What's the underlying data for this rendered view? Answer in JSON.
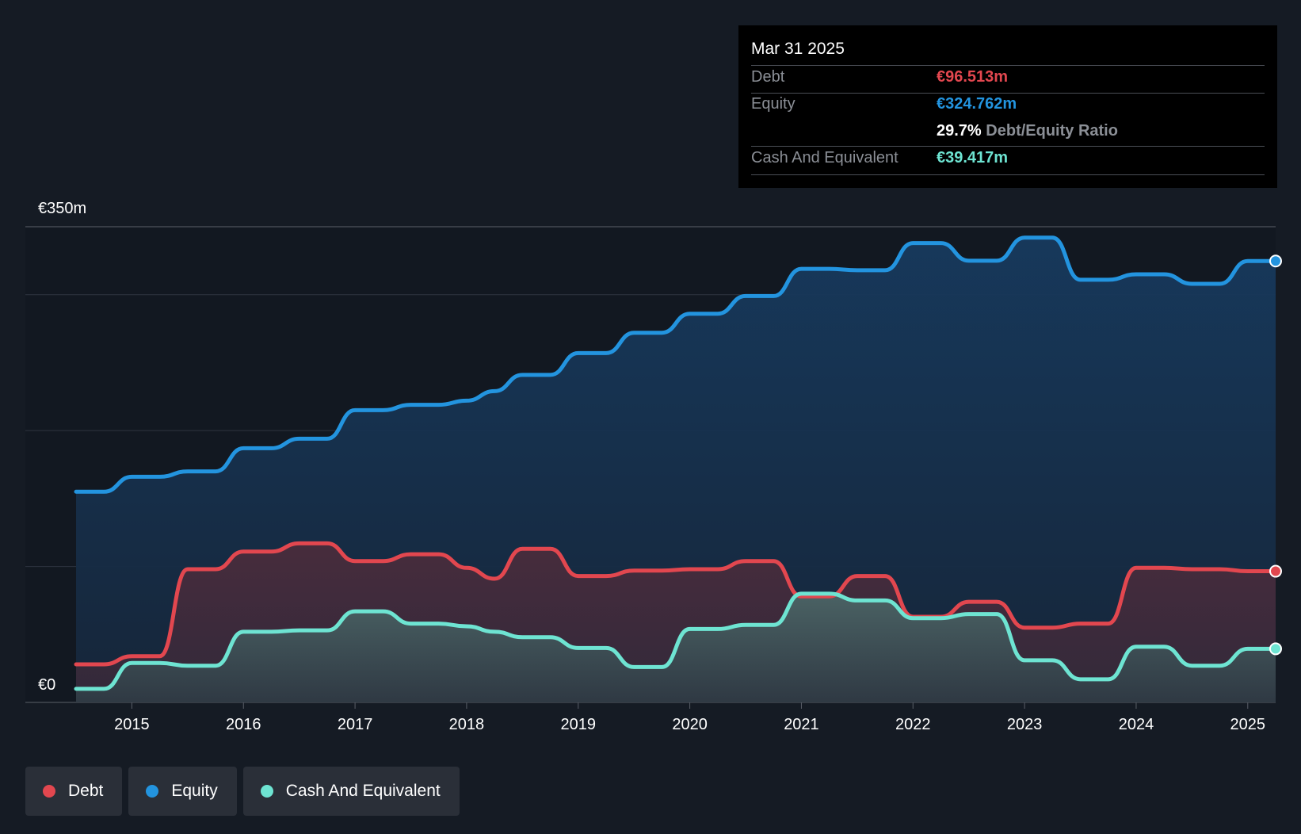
{
  "chart_data": {
    "type": "area",
    "y_top_label": "€350m",
    "y_zero_label": "€0",
    "ylim": [
      0,
      350
    ],
    "xlim": [
      2014.5,
      2025.25
    ],
    "x_ticks": [
      "2015",
      "2016",
      "2017",
      "2018",
      "2019",
      "2020",
      "2021",
      "2022",
      "2023",
      "2024",
      "2025"
    ],
    "x_tick_values": [
      2015,
      2016,
      2017,
      2018,
      2019,
      2020,
      2021,
      2022,
      2023,
      2024,
      2025
    ],
    "grid_values": [
      0,
      100,
      200,
      300,
      350
    ],
    "series": [
      {
        "name": "Equity",
        "color": "#2394df",
        "x": [
          2014.5,
          2014.75,
          2015.0,
          2015.25,
          2015.5,
          2015.75,
          2016.0,
          2016.25,
          2016.5,
          2016.75,
          2017.0,
          2017.25,
          2017.5,
          2017.75,
          2018.0,
          2018.25,
          2018.5,
          2018.75,
          2019.0,
          2019.25,
          2019.5,
          2019.75,
          2020.0,
          2020.25,
          2020.5,
          2020.75,
          2021.0,
          2021.25,
          2021.5,
          2021.75,
          2022.0,
          2022.25,
          2022.5,
          2022.75,
          2023.0,
          2023.25,
          2023.5,
          2023.75,
          2024.0,
          2024.25,
          2024.5,
          2024.75,
          2025.0,
          2025.25
        ],
        "values": [
          155,
          155,
          166,
          166,
          170,
          170,
          187,
          187,
          194,
          194,
          215,
          215,
          219,
          219,
          222,
          229,
          241,
          241,
          257,
          257,
          272,
          272,
          286,
          286,
          299,
          299,
          319,
          319,
          318,
          318,
          338,
          338,
          325,
          325,
          342,
          342,
          311,
          311,
          315,
          315,
          308,
          308,
          324.762,
          324.762
        ]
      },
      {
        "name": "Debt",
        "color": "#e2474f",
        "x": [
          2014.5,
          2014.75,
          2015.0,
          2015.25,
          2015.5,
          2015.75,
          2016.0,
          2016.25,
          2016.5,
          2016.75,
          2017.0,
          2017.25,
          2017.5,
          2017.75,
          2018.0,
          2018.25,
          2018.5,
          2018.75,
          2019.0,
          2019.25,
          2019.5,
          2019.75,
          2020.0,
          2020.25,
          2020.5,
          2020.75,
          2021.0,
          2021.25,
          2021.5,
          2021.75,
          2022.0,
          2022.25,
          2022.5,
          2022.75,
          2023.0,
          2023.25,
          2023.5,
          2023.75,
          2024.0,
          2024.25,
          2024.5,
          2024.75,
          2025.0,
          2025.25
        ],
        "values": [
          28,
          28,
          34,
          34,
          98,
          98,
          111,
          111,
          117,
          117,
          104,
          104,
          109,
          109,
          99,
          91,
          113,
          113,
          93,
          93,
          97,
          97,
          98,
          98,
          104,
          104,
          78,
          78,
          93,
          93,
          63,
          63,
          74,
          74,
          55,
          55,
          58,
          58,
          99,
          99,
          98,
          98,
          96.513,
          96.513
        ]
      },
      {
        "name": "Cash And Equivalent",
        "color": "#6ee4d2",
        "x": [
          2014.5,
          2014.75,
          2015.0,
          2015.25,
          2015.5,
          2015.75,
          2016.0,
          2016.25,
          2016.5,
          2016.75,
          2017.0,
          2017.25,
          2017.5,
          2017.75,
          2018.0,
          2018.25,
          2018.5,
          2018.75,
          2019.0,
          2019.25,
          2019.5,
          2019.75,
          2020.0,
          2020.25,
          2020.5,
          2020.75,
          2021.0,
          2021.25,
          2021.5,
          2021.75,
          2022.0,
          2022.25,
          2022.5,
          2022.75,
          2023.0,
          2023.25,
          2023.5,
          2023.75,
          2024.0,
          2024.25,
          2024.5,
          2024.75,
          2025.0,
          2025.25
        ],
        "values": [
          10,
          10,
          29,
          29,
          27,
          27,
          52,
          52,
          53,
          53,
          67,
          67,
          58,
          58,
          56,
          52,
          48,
          48,
          40,
          40,
          26,
          26,
          54,
          54,
          57,
          57,
          80,
          80,
          75,
          75,
          62,
          62,
          65,
          65,
          31,
          31,
          17,
          17,
          41,
          41,
          27,
          27,
          39.417,
          39.417
        ]
      }
    ]
  },
  "tooltip": {
    "date": "Mar 31 2025",
    "debt_label": "Debt",
    "debt_value": "€96.513m",
    "equity_label": "Equity",
    "equity_value": "€324.762m",
    "ratio_pct": "29.7%",
    "ratio_label": "Debt/Equity Ratio",
    "cash_label": "Cash And Equivalent",
    "cash_value": "€39.417m"
  },
  "legend": [
    {
      "label": "Debt",
      "color": "#e2474f"
    },
    {
      "label": "Equity",
      "color": "#2394df"
    },
    {
      "label": "Cash And Equivalent",
      "color": "#6ee4d2"
    }
  ]
}
